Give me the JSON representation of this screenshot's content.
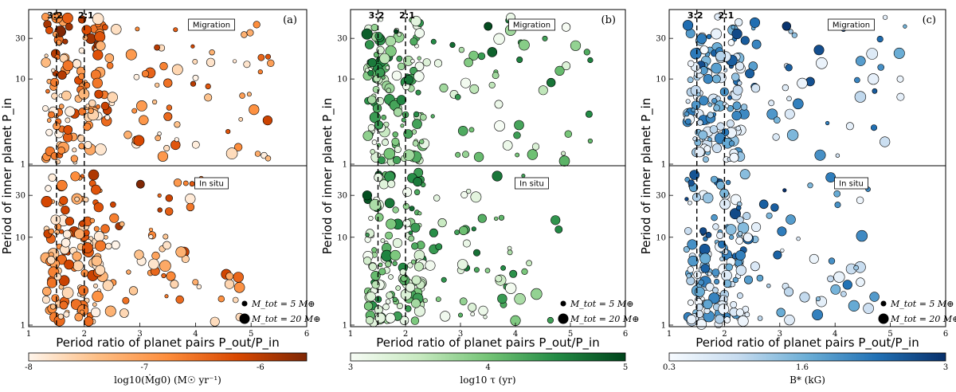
{
  "chart_data": [
    {
      "type": "scatter",
      "panel_label": "(a)",
      "xlabel": "Period ratio of planet pairs P_out/P_in",
      "ylabel": "Period of inner planet P_in",
      "xlim": [
        1,
        6
      ],
      "x_ticks": [
        "1",
        "2",
        "3",
        "4",
        "5",
        "6"
      ],
      "ylim": [
        1,
        60
      ],
      "y_ticks": [
        "1",
        "10",
        "30"
      ],
      "resonance_lines": [
        {
          "label": "3:2",
          "x": 1.5
        },
        {
          "label": "2:1",
          "x": 2.0
        }
      ],
      "subpanels": [
        "Migration",
        "In situ"
      ],
      "colorbar": {
        "label": "log10(Ṁg0) (M☉ yr⁻¹)",
        "ticks": [
          "-8",
          "-7",
          "-6"
        ],
        "range": [
          -8,
          -5.6
        ],
        "colors": [
          "#fff5eb",
          "#fdbe85",
          "#fd8d3c",
          "#d94801",
          "#7f2704"
        ]
      },
      "seed": 11
    },
    {
      "type": "scatter",
      "panel_label": "(b)",
      "xlabel": "Period ratio of planet pairs P_out/P_in",
      "ylabel": "Period of inner planet P_in",
      "xlim": [
        1,
        6
      ],
      "x_ticks": [
        "1",
        "2",
        "3",
        "4",
        "5",
        "6"
      ],
      "ylim": [
        1,
        60
      ],
      "y_ticks": [
        "1",
        "10",
        "30"
      ],
      "resonance_lines": [
        {
          "label": "3:2",
          "x": 1.5
        },
        {
          "label": "2:1",
          "x": 2.0
        }
      ],
      "subpanels": [
        "Migration",
        "In situ"
      ],
      "colorbar": {
        "label": "log10 τ (yr)",
        "ticks": [
          "3",
          "4",
          "5"
        ],
        "range": [
          3,
          5
        ],
        "colors": [
          "#f7fcf5",
          "#c7e9c0",
          "#74c476",
          "#238b45",
          "#00441b"
        ]
      },
      "seed": 23
    },
    {
      "type": "scatter",
      "panel_label": "(c)",
      "xlabel": "Period ratio of planet pairs P_out/P_in",
      "ylabel": "Period of inner planet P_in",
      "xlim": [
        1,
        6
      ],
      "x_ticks": [
        "1",
        "2",
        "3",
        "4",
        "5",
        "6"
      ],
      "ylim": [
        1,
        60
      ],
      "y_ticks": [
        "1",
        "10",
        "30"
      ],
      "resonance_lines": [
        {
          "label": "3:2",
          "x": 1.5
        },
        {
          "label": "2:1",
          "x": 2.0
        }
      ],
      "subpanels": [
        "Migration",
        "In situ"
      ],
      "colorbar": {
        "label": "B* (kG)",
        "ticks": [
          "0.3",
          "1.6",
          "3"
        ],
        "range": [
          0.3,
          3
        ],
        "colors": [
          "#f7fbff",
          "#c6dbef",
          "#6baed6",
          "#2171b5",
          "#08306b"
        ]
      },
      "seed": 37
    }
  ],
  "legend": [
    {
      "label": "M_tot = 5 M⊕",
      "size": "small"
    },
    {
      "label": "M_tot = 20 M⊕",
      "size": "large"
    }
  ]
}
